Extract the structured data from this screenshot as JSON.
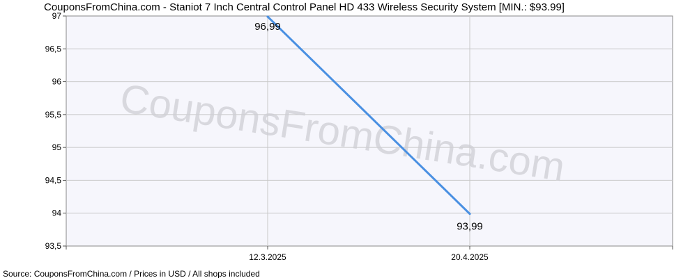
{
  "chart_data": {
    "type": "line",
    "title": "CouponsFromChina.com - Staniot 7 Inch Central Control Panel HD 433 Wireless Security System [MIN.: $93.99]",
    "x": [
      "12.3.2025",
      "20.4.2025"
    ],
    "series": [
      {
        "values": [
          96.99,
          93.99
        ],
        "labels": [
          "96,99",
          "93,99"
        ]
      }
    ],
    "y_ticks": [
      "97",
      "96,5",
      "96",
      "95,5",
      "95",
      "94,5",
      "94",
      "93,5"
    ],
    "ylim": [
      93.5,
      97
    ],
    "grid": true,
    "colors": {
      "line": "#4a90e2",
      "plot_background": "#f6f6fc",
      "grid": "#c8c8c8"
    }
  },
  "watermark": "CouponsFromChina.com",
  "footer": "Source: CouponsFromChina.com / Prices in USD / All shops included"
}
